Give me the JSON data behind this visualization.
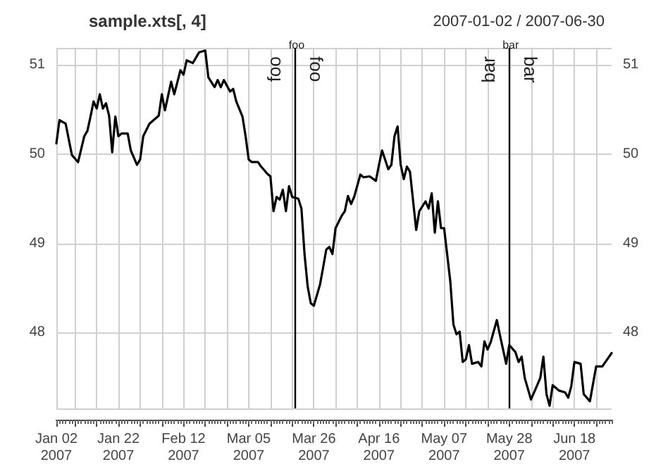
{
  "chart_data": {
    "type": "line",
    "title": "sample.xts[, 4]",
    "subtitle": "2007-01-02 / 2007-06-30",
    "x": [
      "2007-01-02",
      "2007-01-03",
      "2007-01-05",
      "2007-01-07",
      "2007-01-09",
      "2007-01-11",
      "2007-01-12",
      "2007-01-13",
      "2007-01-14",
      "2007-01-15",
      "2007-01-16",
      "2007-01-17",
      "2007-01-18",
      "2007-01-19",
      "2007-01-20",
      "2007-01-21",
      "2007-01-22",
      "2007-01-23",
      "2007-01-25",
      "2007-01-26",
      "2007-01-28",
      "2007-01-29",
      "2007-01-30",
      "2007-02-01",
      "2007-02-04",
      "2007-02-05",
      "2007-02-06",
      "2007-02-08",
      "2007-02-09",
      "2007-02-11",
      "2007-02-12",
      "2007-02-13",
      "2007-02-15",
      "2007-02-17",
      "2007-02-19",
      "2007-02-20",
      "2007-02-22",
      "2007-02-23",
      "2007-02-24",
      "2007-02-25",
      "2007-02-27",
      "2007-02-28",
      "2007-03-01",
      "2007-03-03",
      "2007-03-04",
      "2007-03-05",
      "2007-03-06",
      "2007-03-08",
      "2007-03-09",
      "2007-03-11",
      "2007-03-12",
      "2007-03-13",
      "2007-03-14",
      "2007-03-15",
      "2007-03-16",
      "2007-03-17",
      "2007-03-18",
      "2007-03-19",
      "2007-03-21",
      "2007-03-22",
      "2007-03-23",
      "2007-03-24",
      "2007-03-25",
      "2007-03-26",
      "2007-03-28",
      "2007-03-29",
      "2007-03-30",
      "2007-03-31",
      "2007-04-01",
      "2007-04-02",
      "2007-04-04",
      "2007-04-05",
      "2007-04-06",
      "2007-04-07",
      "2007-04-08",
      "2007-04-10",
      "2007-04-11",
      "2007-04-13",
      "2007-04-15",
      "2007-04-16",
      "2007-04-17",
      "2007-04-19",
      "2007-04-20",
      "2007-04-21",
      "2007-04-22",
      "2007-04-23",
      "2007-04-24",
      "2007-04-25",
      "2007-04-26",
      "2007-04-28",
      "2007-04-29",
      "2007-05-01",
      "2007-05-02",
      "2007-05-03",
      "2007-05-04",
      "2007-05-05",
      "2007-05-06",
      "2007-05-07",
      "2007-05-09",
      "2007-05-10",
      "2007-05-11",
      "2007-05-12",
      "2007-05-13",
      "2007-05-14",
      "2007-05-15",
      "2007-05-16",
      "2007-05-18",
      "2007-05-19",
      "2007-05-20",
      "2007-05-21",
      "2007-05-22",
      "2007-05-24",
      "2007-05-25",
      "2007-05-27",
      "2007-05-28",
      "2007-05-30",
      "2007-05-31",
      "2007-06-01",
      "2007-06-02",
      "2007-06-04",
      "2007-06-06",
      "2007-06-07",
      "2007-06-08",
      "2007-06-09",
      "2007-06-10",
      "2007-06-11",
      "2007-06-13",
      "2007-06-15",
      "2007-06-16",
      "2007-06-17",
      "2007-06-18",
      "2007-06-20",
      "2007-06-21",
      "2007-06-23",
      "2007-06-25",
      "2007-06-27",
      "2007-06-30"
    ],
    "series": [
      {
        "color": "#000000",
        "values": [
          50.12,
          50.38,
          50.34,
          49.99,
          49.91,
          50.2,
          50.26,
          50.42,
          50.59,
          50.51,
          50.67,
          50.51,
          50.57,
          50.43,
          50.02,
          50.42,
          50.2,
          50.23,
          50.23,
          50.04,
          49.88,
          49.94,
          50.2,
          50.34,
          50.43,
          50.67,
          50.49,
          50.81,
          50.67,
          50.94,
          50.89,
          51.05,
          51.02,
          51.14,
          51.16,
          50.86,
          50.75,
          50.83,
          50.75,
          50.83,
          50.7,
          50.73,
          50.59,
          50.42,
          50.2,
          49.94,
          49.91,
          49.91,
          49.86,
          49.78,
          49.75,
          49.36,
          49.52,
          49.49,
          49.6,
          49.36,
          49.64,
          49.52,
          49.5,
          49.39,
          48.88,
          48.52,
          48.33,
          48.3,
          48.54,
          48.73,
          48.93,
          48.96,
          48.88,
          49.17,
          49.31,
          49.36,
          49.53,
          49.44,
          49.52,
          49.77,
          49.74,
          49.75,
          49.7,
          49.88,
          50.04,
          49.83,
          49.88,
          50.2,
          50.31,
          49.88,
          49.72,
          49.86,
          49.8,
          49.15,
          49.36,
          49.47,
          49.39,
          49.56,
          49.12,
          49.47,
          49.17,
          49.17,
          48.57,
          48.09,
          47.98,
          48.01,
          47.67,
          47.7,
          47.86,
          47.65,
          47.67,
          47.62,
          47.9,
          47.81,
          47.89,
          48.14,
          47.97,
          47.65,
          47.86,
          47.78,
          47.67,
          47.73,
          47.49,
          47.25,
          47.41,
          47.49,
          47.73,
          47.31,
          47.18,
          47.41,
          47.35,
          47.33,
          47.27,
          47.4,
          47.67,
          47.65,
          47.31,
          47.23,
          47.62,
          47.62,
          47.77
        ]
      }
    ],
    "xlim": [
      "2007-01-02",
      "2007-06-30"
    ],
    "xticks": [
      {
        "value": "2007-01-02",
        "label": "Jan 02\n2007"
      },
      {
        "value": "2007-01-08",
        "label": null
      },
      {
        "value": "2007-01-15",
        "label": null
      },
      {
        "value": "2007-01-22",
        "label": "Jan 22\n2007"
      },
      {
        "value": "2007-01-29",
        "label": null
      },
      {
        "value": "2007-02-05",
        "label": null
      },
      {
        "value": "2007-02-12",
        "label": "Feb 12\n2007"
      },
      {
        "value": "2007-02-19",
        "label": null
      },
      {
        "value": "2007-02-26",
        "label": null
      },
      {
        "value": "2007-03-05",
        "label": "Mar 05\n2007"
      },
      {
        "value": "2007-03-12",
        "label": null
      },
      {
        "value": "2007-03-19",
        "label": null
      },
      {
        "value": "2007-03-26",
        "label": "Mar 26\n2007"
      },
      {
        "value": "2007-04-02",
        "label": null
      },
      {
        "value": "2007-04-09",
        "label": null
      },
      {
        "value": "2007-04-16",
        "label": "Apr 16\n2007"
      },
      {
        "value": "2007-04-23",
        "label": null
      },
      {
        "value": "2007-04-30",
        "label": null
      },
      {
        "value": "2007-05-07",
        "label": "May 07\n2007"
      },
      {
        "value": "2007-05-14",
        "label": null
      },
      {
        "value": "2007-05-21",
        "label": null
      },
      {
        "value": "2007-05-28",
        "label": "May 28\n2007"
      },
      {
        "value": "2007-06-04",
        "label": null
      },
      {
        "value": "2007-06-11",
        "label": null
      },
      {
        "value": "2007-06-18",
        "label": "Jun 18\n2007"
      },
      {
        "value": "2007-06-25",
        "label": null
      }
    ],
    "ylim": [
      47.15,
      51.19
    ],
    "yticks": [
      48,
      49,
      50,
      51
    ],
    "y2lim": [
      47.15,
      51.19
    ],
    "y2ticks": [
      48,
      49,
      50,
      51
    ],
    "ref_lines": [
      {
        "axis": "x",
        "value": "2007-03-20",
        "label": "foo",
        "color": "#000000"
      },
      {
        "axis": "x",
        "value": "2007-05-28",
        "label": "bar",
        "color": "#000000"
      }
    ],
    "grid": true,
    "marker": "none",
    "line_style": "solid"
  }
}
